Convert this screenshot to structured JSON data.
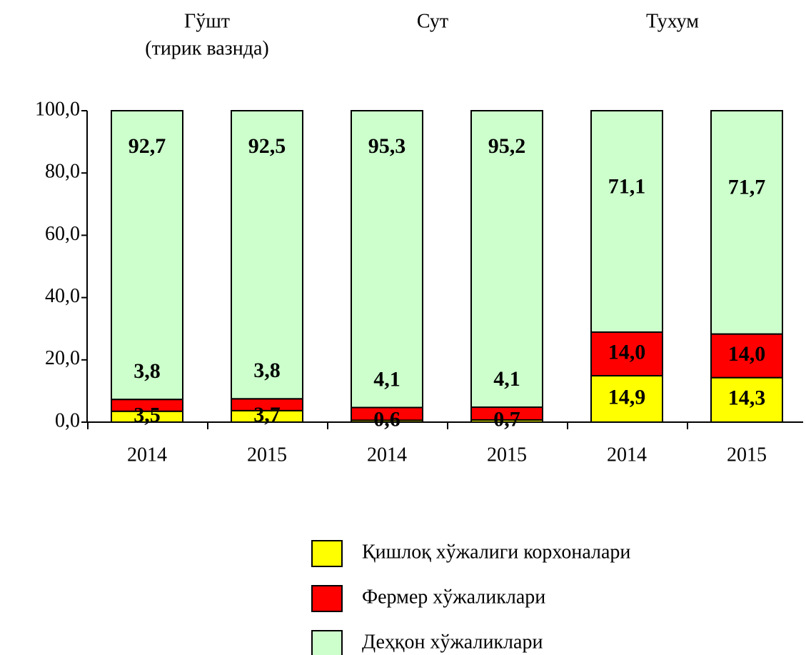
{
  "chart_data": {
    "type": "stacked_bar",
    "group_labels": [
      [
        "Гўшт",
        "(тирик вазнда)"
      ],
      [
        "Сут"
      ],
      [
        "Тухум"
      ]
    ],
    "categories": [
      "2014",
      "2015",
      "2014",
      "2015",
      "2014",
      "2015"
    ],
    "series": [
      {
        "name": "Қишлоқ хўжалиги корхоналари",
        "color": "#ffff00",
        "values": [
          3.5,
          3.7,
          0.6,
          0.7,
          14.9,
          14.3
        ],
        "value_labels": [
          "3,5",
          "3,7",
          "0,6",
          "0,7",
          "14,9",
          "14,3"
        ]
      },
      {
        "name": "Фермер хўжаликлари",
        "color": "#ff0000",
        "values": [
          3.8,
          3.8,
          4.1,
          4.1,
          14.0,
          14.0
        ],
        "value_labels": [
          "3,8",
          "3,8",
          "4,1",
          "4,1",
          "14,0",
          "14,0"
        ]
      },
      {
        "name": "Деҳқон хўжаликлари",
        "color": "#ccffcc",
        "values": [
          92.7,
          92.5,
          95.3,
          95.2,
          71.1,
          71.7
        ],
        "value_labels": [
          "92,7",
          "92,5",
          "95,3",
          "95,2",
          "71,1",
          "71,7"
        ]
      }
    ],
    "ylim": [
      0,
      100
    ],
    "yticks": [
      {
        "value": 0,
        "label": "0,0"
      },
      {
        "value": 20,
        "label": "20,0"
      },
      {
        "value": 40,
        "label": "40,0"
      },
      {
        "value": 60,
        "label": "60,0"
      },
      {
        "value": 80,
        "label": "80,0"
      },
      {
        "value": 100,
        "label": "100,0"
      }
    ],
    "legend": "bottom"
  }
}
